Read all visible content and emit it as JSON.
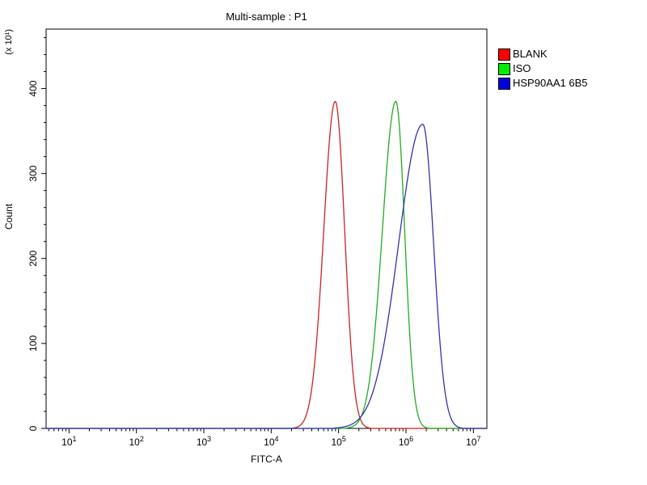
{
  "title": "Multi-sample : P1",
  "axes": {
    "x": {
      "label": "FITC-A",
      "scale": "log10",
      "tick_exponents": [
        1,
        2,
        3,
        4,
        5,
        6,
        7
      ],
      "min_log": 0.66,
      "max_log": 7.2
    },
    "y": {
      "label": "Count",
      "multiplier": "(x 10¹)",
      "min": 0,
      "max": 470,
      "major_ticks": [
        0,
        100,
        200,
        300,
        400
      ],
      "minor_step": 20
    }
  },
  "legend": {
    "items": [
      {
        "label": "BLANK",
        "color": "#ff0000"
      },
      {
        "label": "ISO",
        "color": "#00ee00"
      },
      {
        "label": "HSP90AA1 6B5",
        "color": "#0000dd"
      }
    ]
  },
  "chart_data": {
    "type": "line",
    "title": "Multi-sample : P1",
    "xlabel": "FITC-A",
    "ylabel": "Count (x 10¹)",
    "x_scale": "log10",
    "xlim": [
      10,
      10000000
    ],
    "ylim": [
      0,
      470
    ],
    "grid": false,
    "legend_position": "right-outside",
    "series": [
      {
        "name": "BLANK",
        "color": "#cc2222",
        "peak_x": 90000,
        "log10_center": 4.95,
        "peak_count": 385,
        "sigma_log_left": 0.17,
        "sigma_log_right": 0.14
      },
      {
        "name": "ISO",
        "color": "#22aa22",
        "peak_x": 700000,
        "log10_center": 5.85,
        "peak_count": 385,
        "sigma_log_left": 0.2,
        "sigma_log_right": 0.13
      },
      {
        "name": "HSP90AA1 6B5",
        "color": "#3333aa",
        "peak_x": 1800000,
        "log10_center": 6.25,
        "peak_count": 358,
        "sigma_log_left": 0.36,
        "sigma_log_right": 0.16
      }
    ]
  }
}
